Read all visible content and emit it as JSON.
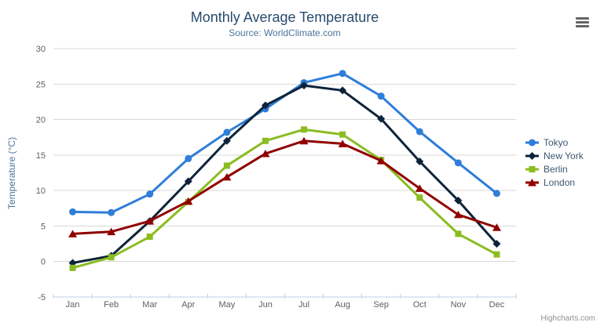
{
  "credits": "Highcharts.com",
  "menu": {
    "icon": "hamburger-icon"
  },
  "colors": {
    "background": "#ffffff",
    "title_text": "#274b6d",
    "subtitle_text": "#4d759e",
    "axis_title_text": "#4d759e",
    "tick_label_text": "#606060",
    "grid_line": "#d8d8d8",
    "axis_line": "#c0d0e0",
    "legend_text": "#3e576f",
    "credits_text": "#909090",
    "menu_icon": "#666666"
  },
  "chart_data": {
    "type": "line",
    "title": "Monthly Average Temperature",
    "subtitle": "Source: WorldClimate.com",
    "categories": [
      "Jan",
      "Feb",
      "Mar",
      "Apr",
      "May",
      "Jun",
      "Jul",
      "Aug",
      "Sep",
      "Oct",
      "Nov",
      "Dec"
    ],
    "series": [
      {
        "name": "Tokyo",
        "color": "#2f7ed8",
        "marker": "circle",
        "values": [
          7.0,
          6.9,
          9.5,
          14.5,
          18.2,
          21.5,
          25.2,
          26.5,
          23.3,
          18.3,
          13.9,
          9.6
        ]
      },
      {
        "name": "New York",
        "color": "#0d233a",
        "marker": "diamond",
        "values": [
          -0.2,
          0.8,
          5.7,
          11.3,
          17.0,
          22.0,
          24.8,
          24.1,
          20.1,
          14.1,
          8.6,
          2.5
        ]
      },
      {
        "name": "Berlin",
        "color": "#8bbc21",
        "marker": "square",
        "values": [
          -0.9,
          0.6,
          3.5,
          8.4,
          13.5,
          17.0,
          18.6,
          17.9,
          14.3,
          9.0,
          3.9,
          1.0
        ]
      },
      {
        "name": "London",
        "color": "#910000",
        "marker": "triangle",
        "values": [
          3.9,
          4.2,
          5.7,
          8.5,
          11.9,
          15.2,
          17.0,
          16.6,
          14.2,
          10.3,
          6.6,
          4.8
        ]
      }
    ],
    "xlabel": "",
    "ylabel": "Temperature (°C)",
    "ylim": [
      -5,
      30
    ],
    "ytick_step": 5,
    "grid": true,
    "legend_position": "right"
  }
}
